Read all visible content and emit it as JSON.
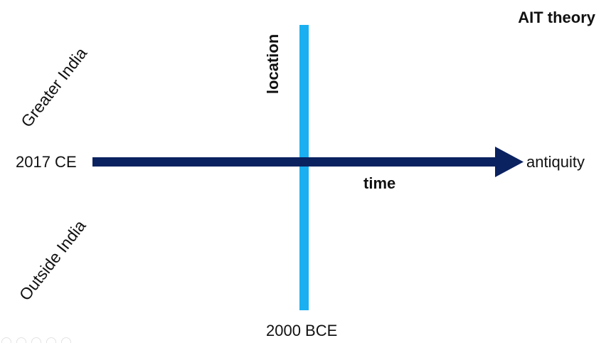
{
  "title": "AIT theory",
  "vertical_axis": {
    "label": "location",
    "bottom_label": "2000 BCE",
    "upper_region": "Greater India",
    "lower_region": "Outside India",
    "color": "#1aaff0"
  },
  "horizontal_axis": {
    "label": "time",
    "start_label": "2017 CE",
    "end_label": "antiquity",
    "color": "#0b2260"
  },
  "page_indicator": {
    "count": 5
  }
}
